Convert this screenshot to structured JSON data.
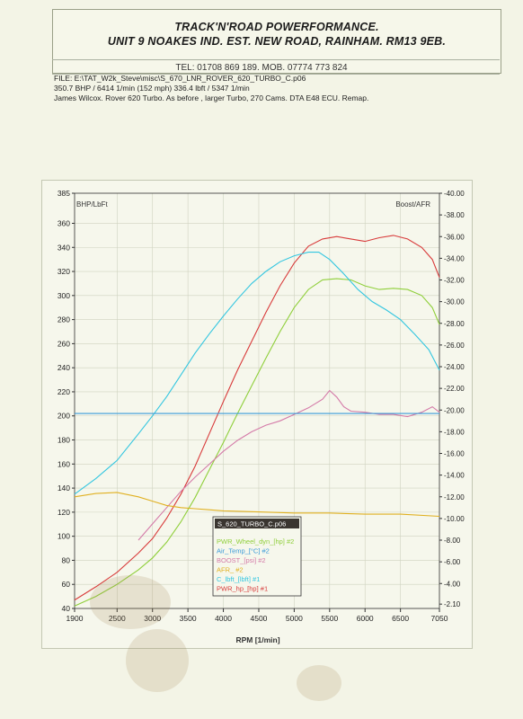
{
  "header": {
    "company_line1": "TRACK'N'ROAD POWERFORMANCE.",
    "company_line2": "UNIT 9 NOAKES IND. EST. NEW ROAD, RAINHAM. RM13 9EB.",
    "contact": "TEL: 01708 869 189. MOB. 07774 773 824"
  },
  "info": {
    "file_line": "FILE: E:\\TAT_W2k_Steve\\misc\\S_670_LNR_ROVER_620_TURBO_C.p06",
    "power_line": "350.7 BHP / 6414 1/min (152 mph)    336.4 lbft / 5347 1/min",
    "notes_line": "James Wilcox. Rover 620 Turbo. As before , larger Turbo, 270 Cams. DTA E48 ECU. Remap."
  },
  "colors": {
    "power": "#d83a3a",
    "wheel_power": "#8fcf3a",
    "torque": "#33c6e0",
    "boost": "#d47aa8",
    "afr": "#e0b020",
    "air_temp": "#3a9ad8",
    "axis": "#333333",
    "grid": "#cfd3c0"
  },
  "chart_data": {
    "type": "line",
    "title": "",
    "xlabel": "RPM  [1/min]",
    "ylabel_left": "BHP/LbFt",
    "ylabel_right": "Boost/AFR",
    "xlim": [
      1900,
      7050
    ],
    "ylim_left": [
      40,
      385
    ],
    "ylim_right": [
      -1.7,
      -40
    ],
    "x_ticks": [
      1900,
      2500,
      3000,
      3500,
      4000,
      4500,
      5000,
      5500,
      6000,
      6500,
      7050
    ],
    "y_left_ticks": [
      40,
      60,
      80,
      100,
      120,
      140,
      160,
      180,
      200,
      220,
      240,
      260,
      280,
      300,
      320,
      340,
      360,
      385
    ],
    "y_right_ticks": [
      -2.1,
      -4.0,
      -6.0,
      -8.0,
      -10.0,
      -12.0,
      -14.0,
      -16.0,
      -18.0,
      -20.0,
      -22.0,
      -24.0,
      -26.0,
      -28.0,
      -30.0,
      -32.0,
      -34.0,
      -36.0,
      -38.0,
      -40.0
    ],
    "grid": true,
    "legend": {
      "title": "S_620_TURBO_C.p06",
      "position": "bottom-center",
      "entries": [
        "PWR_Wheel_dyn_[hp] #2",
        "Air_Temp_[°C] #2",
        "BOOST_[psi] #2",
        "AFR_ #2",
        "C_lbft_[lbft] #1",
        "PWR_hp_[hp] #1"
      ]
    },
    "series": [
      {
        "name": "PWR_hp_[hp] #1",
        "color_key": "power",
        "axis": "left",
        "x": [
          1900,
          2200,
          2500,
          2800,
          3000,
          3200,
          3400,
          3600,
          3800,
          4000,
          4200,
          4400,
          4600,
          4800,
          5000,
          5200,
          5400,
          5600,
          5800,
          6000,
          6200,
          6400,
          6600,
          6800,
          6950,
          7050
        ],
        "y": [
          47,
          58,
          70,
          86,
          98,
          115,
          135,
          158,
          185,
          212,
          238,
          262,
          286,
          308,
          327,
          341,
          347,
          349,
          347,
          345,
          348,
          350,
          347,
          340,
          330,
          315
        ]
      },
      {
        "name": "PWR_Wheel_dyn_[hp] #2",
        "color_key": "wheel_power",
        "axis": "left",
        "x": [
          1900,
          2200,
          2500,
          2800,
          3000,
          3200,
          3400,
          3600,
          3800,
          4000,
          4200,
          4400,
          4600,
          4800,
          5000,
          5200,
          5400,
          5600,
          5800,
          6000,
          6200,
          6400,
          6600,
          6800,
          6950,
          7050
        ],
        "y": [
          42,
          50,
          60,
          72,
          82,
          95,
          112,
          132,
          155,
          178,
          202,
          225,
          248,
          270,
          290,
          305,
          313,
          314,
          313,
          308,
          305,
          306,
          305,
          300,
          290,
          276
        ]
      },
      {
        "name": "C_lbft_[lbft] #1",
        "color_key": "torque",
        "axis": "left",
        "x": [
          1900,
          2200,
          2500,
          2800,
          3000,
          3200,
          3400,
          3600,
          3800,
          4000,
          4200,
          4400,
          4600,
          4800,
          5000,
          5200,
          5347,
          5500,
          5700,
          5900,
          6100,
          6300,
          6500,
          6700,
          6900,
          7050
        ],
        "y": [
          135,
          148,
          163,
          185,
          200,
          216,
          234,
          252,
          268,
          283,
          297,
          310,
          320,
          328,
          333,
          336,
          336,
          330,
          318,
          305,
          295,
          288,
          280,
          268,
          255,
          238
        ]
      },
      {
        "name": "BOOST_[psi] #2",
        "color_key": "boost",
        "axis": "right",
        "x": [
          2800,
          3000,
          3200,
          3400,
          3600,
          3800,
          4000,
          4200,
          4400,
          4600,
          4800,
          5000,
          5200,
          5400,
          5500,
          5600,
          5700,
          5800,
          6000,
          6200,
          6400,
          6600,
          6800,
          6950,
          7050
        ],
        "y": [
          -8.0,
          -9.5,
          -11.0,
          -12.5,
          -13.8,
          -15.0,
          -16.2,
          -17.2,
          -18.0,
          -18.6,
          -19.0,
          -19.6,
          -20.2,
          -21.0,
          -21.8,
          -21.2,
          -20.3,
          -19.9,
          -19.8,
          -19.6,
          -19.6,
          -19.4,
          -19.8,
          -20.3,
          -19.8
        ]
      },
      {
        "name": "AFR_ #2",
        "color_key": "afr",
        "axis": "right",
        "x": [
          1900,
          2200,
          2500,
          2800,
          3000,
          3200,
          3400,
          3600,
          3800,
          4000,
          4500,
          5000,
          5500,
          6000,
          6500,
          7050
        ],
        "y": [
          -12.0,
          -12.3,
          -12.4,
          -12.0,
          -11.6,
          -11.2,
          -11.0,
          -10.9,
          -10.8,
          -10.7,
          -10.6,
          -10.5,
          -10.5,
          -10.4,
          -10.4,
          -10.2
        ]
      },
      {
        "name": "Air_Temp_[°C] #2",
        "color_key": "air_temp",
        "axis": "left",
        "x": [
          1900,
          7050
        ],
        "y": [
          202,
          202
        ]
      }
    ]
  }
}
